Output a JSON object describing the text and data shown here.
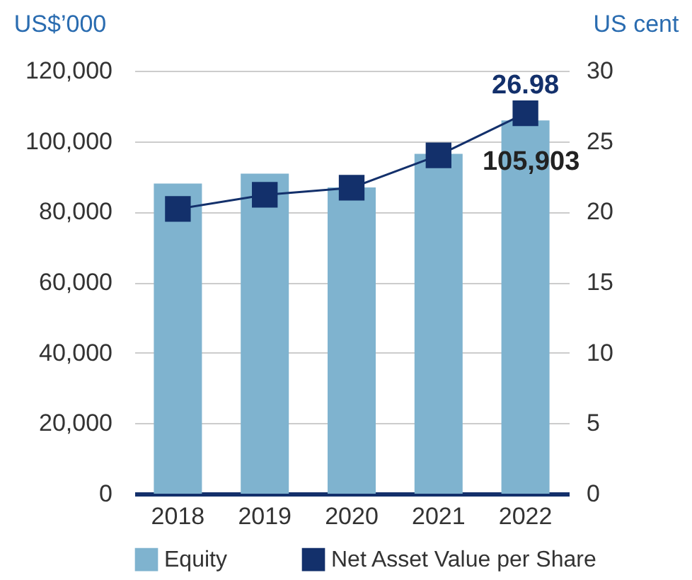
{
  "chart_data": {
    "type": "bar",
    "categories": [
      "2018",
      "2019",
      "2020",
      "2021",
      "2022"
    ],
    "series": [
      {
        "name": "Equity",
        "color": "#7fb3cf",
        "values": [
          88000,
          90800,
          86900,
          96400,
          105903
        ],
        "value_labels": [
          null,
          null,
          null,
          null,
          "105,903"
        ]
      },
      {
        "name": "Net Asset Value per Share",
        "type": "line",
        "axis": "y2",
        "color": "#13306b",
        "values": [
          20.2,
          21.2,
          21.7,
          24.0,
          26.98
        ],
        "value_labels": [
          null,
          null,
          null,
          null,
          "26.98"
        ]
      }
    ],
    "ylabel": "US$’000",
    "y2label": "US cent",
    "ylim": [
      0,
      120000
    ],
    "yticks": [
      0,
      {
        "value": 20000,
        "label": "20,000"
      },
      {
        "value": 40000,
        "label": "40,000"
      },
      {
        "value": 60000,
        "label": "60,000"
      },
      {
        "value": 80000,
        "label": "80,000"
      },
      {
        "value": 100000,
        "label": "100,000"
      },
      {
        "value": 120000,
        "label": "120,000"
      }
    ],
    "y2lim": [
      0,
      30
    ],
    "y2ticks": [
      0,
      5,
      10,
      15,
      20,
      25,
      30
    ],
    "grid": "y",
    "legend": "bottom",
    "marker": "square"
  }
}
